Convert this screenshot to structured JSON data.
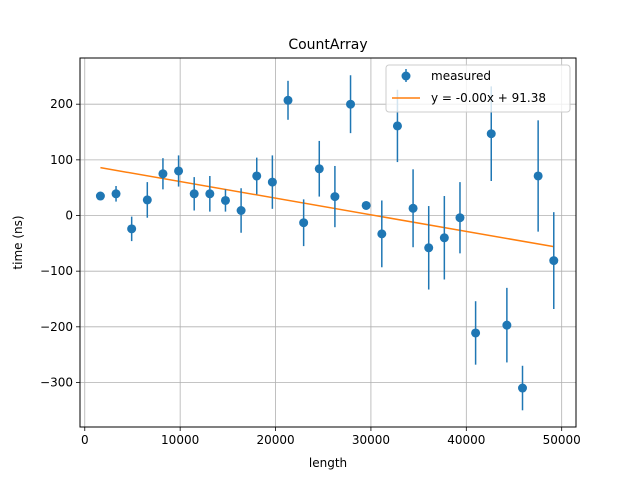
{
  "chart_data": {
    "type": "scatter",
    "title": "CountArray",
    "xlabel": "length",
    "ylabel": "time (ns)",
    "xlim": [
      -500,
      51500
    ],
    "ylim": [
      -380,
      283
    ],
    "x_ticks": [
      0,
      10000,
      20000,
      30000,
      40000,
      50000
    ],
    "x_tick_labels": [
      "0",
      "10000",
      "20000",
      "30000",
      "40000",
      "50000"
    ],
    "y_ticks": [
      -300,
      -200,
      -100,
      0,
      100,
      200
    ],
    "y_tick_labels": [
      "−300",
      "−200",
      "−100",
      "0",
      "100",
      "200"
    ],
    "grid": true,
    "legend": {
      "placement": "top-right",
      "entries": [
        "measured",
        "y = -0.00x + 91.38"
      ]
    },
    "colors": {
      "measured": "#1f77b4",
      "fit": "#ff7f0e"
    },
    "series": [
      {
        "name": "measured",
        "kind": "errorbar",
        "points": [
          {
            "x": 1639,
            "y": 35,
            "err": 5
          },
          {
            "x": 3278,
            "y": 39,
            "err": 14
          },
          {
            "x": 4917,
            "y": -24,
            "err": 22
          },
          {
            "x": 6556,
            "y": 28,
            "err": 32
          },
          {
            "x": 8195,
            "y": 75,
            "err": 28
          },
          {
            "x": 9834,
            "y": 80,
            "err": 28
          },
          {
            "x": 11473,
            "y": 39,
            "err": 30
          },
          {
            "x": 13112,
            "y": 39,
            "err": 32
          },
          {
            "x": 14751,
            "y": 27,
            "err": 20
          },
          {
            "x": 16390,
            "y": 9,
            "err": 40
          },
          {
            "x": 18029,
            "y": 71,
            "err": 33
          },
          {
            "x": 19668,
            "y": 60,
            "err": 48
          },
          {
            "x": 21307,
            "y": 207,
            "err": 35
          },
          {
            "x": 22946,
            "y": -13,
            "err": 42
          },
          {
            "x": 24585,
            "y": 84,
            "err": 50
          },
          {
            "x": 26224,
            "y": 34,
            "err": 55
          },
          {
            "x": 27863,
            "y": 200,
            "err": 52
          },
          {
            "x": 29502,
            "y": 18,
            "err": 5
          },
          {
            "x": 31141,
            "y": -33,
            "err": 60
          },
          {
            "x": 32780,
            "y": 161,
            "err": 65
          },
          {
            "x": 34419,
            "y": 13,
            "err": 70
          },
          {
            "x": 36058,
            "y": -58,
            "err": 75
          },
          {
            "x": 37697,
            "y": -40,
            "err": 75
          },
          {
            "x": 39336,
            "y": -4,
            "err": 64
          },
          {
            "x": 40975,
            "y": -211,
            "err": 57
          },
          {
            "x": 42614,
            "y": 147,
            "err": 85
          },
          {
            "x": 44253,
            "y": -197,
            "err": 67
          },
          {
            "x": 45892,
            "y": -310,
            "err": 40
          },
          {
            "x": 47531,
            "y": 71,
            "err": 100
          },
          {
            "x": 49170,
            "y": -81,
            "err": 87
          }
        ]
      },
      {
        "name": "y = -0.00x + 91.38",
        "kind": "line",
        "points": [
          {
            "x": 1639,
            "y": 86
          },
          {
            "x": 49170,
            "y": -56
          }
        ]
      }
    ]
  }
}
